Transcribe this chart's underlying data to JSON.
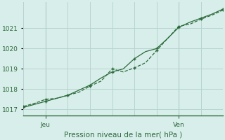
{
  "xlabel": "Pression niveau de la mer( hPa )",
  "background_color": "#d8eeea",
  "grid_color": "#b8d4d0",
  "line_color": "#2d6b3c",
  "line1_x": [
    0,
    2,
    4,
    6,
    8,
    10,
    12,
    14,
    16,
    18,
    20,
    22,
    24,
    26,
    28,
    30,
    32,
    34,
    36
  ],
  "line1_y": [
    1017.15,
    1017.3,
    1017.5,
    1017.55,
    1017.7,
    1017.85,
    1018.15,
    1018.4,
    1019.0,
    1018.85,
    1019.05,
    1019.3,
    1019.9,
    1020.5,
    1021.1,
    1021.2,
    1021.45,
    1021.65,
    1021.9
  ],
  "line2_x": [
    0,
    2,
    4,
    6,
    8,
    10,
    12,
    14,
    16,
    18,
    20,
    22,
    24,
    26,
    28,
    30,
    32,
    34,
    36
  ],
  "line2_y": [
    1017.1,
    1017.25,
    1017.4,
    1017.55,
    1017.7,
    1017.95,
    1018.2,
    1018.55,
    1018.85,
    1019.0,
    1019.5,
    1019.85,
    1020.0,
    1020.5,
    1021.05,
    1021.3,
    1021.5,
    1021.7,
    1021.95
  ],
  "ylim": [
    1016.7,
    1022.3
  ],
  "yticks": [
    1017,
    1018,
    1019,
    1020,
    1021
  ],
  "xtick_positions": [
    4,
    28
  ],
  "xtick_labels": [
    "Jeu",
    "Ven"
  ],
  "vline_positions": [
    4,
    28
  ],
  "xlim": [
    0,
    36
  ]
}
